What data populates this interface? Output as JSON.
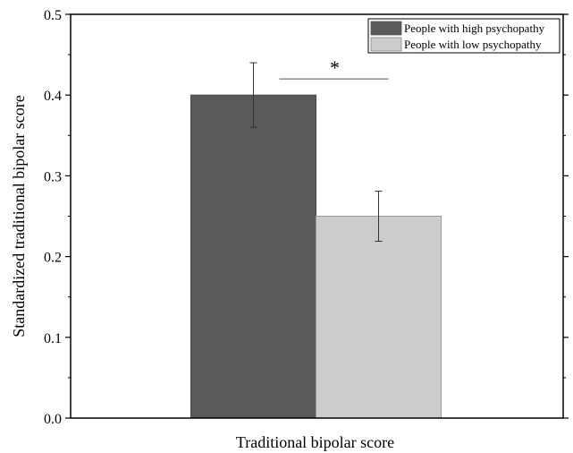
{
  "chart_data": {
    "type": "bar",
    "xlabel": "Traditional bipolar score",
    "ylabel": "Standardized traditional bipolar score",
    "ylim": [
      0,
      0.5
    ],
    "yticks": [
      "0.0",
      "0.1",
      "0.2",
      "0.3",
      "0.4",
      "0.5"
    ],
    "series": [
      {
        "name": "People with high psychopathy",
        "value": 0.4,
        "error": 0.04,
        "color": "#5a5a5a"
      },
      {
        "name": "People with low psychopathy",
        "value": 0.25,
        "error": 0.031,
        "color": "#cccccc"
      }
    ],
    "annotation": "*",
    "legend_position": "top-right",
    "grid": false
  }
}
